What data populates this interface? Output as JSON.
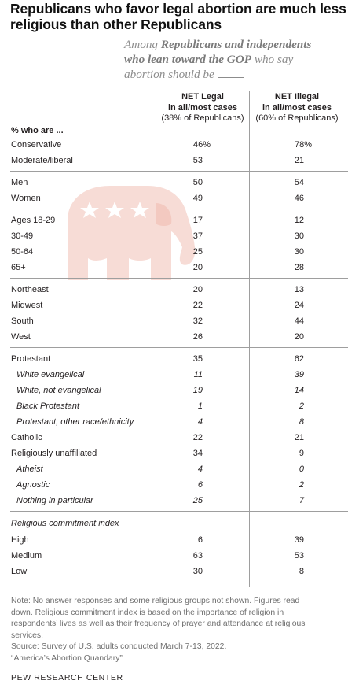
{
  "title_line1": "Republicans who favor legal abortion are much less",
  "title_line2": "religious than other Republicans",
  "subtitle": {
    "part1": "Among ",
    "bold1": "Republicans and independents",
    "bold2": "who lean toward the GOP",
    "part2": " who say",
    "part3": "abortion should be "
  },
  "columns": [
    {
      "line1": "NET Legal",
      "line2": "in all/most cases",
      "line3": "(38% of Republicans)"
    },
    {
      "line1": "NET Illegal",
      "line2": "in all/most cases",
      "line3": "(60% of Republicans)"
    }
  ],
  "chart_data": {
    "type": "table",
    "unit_header": "% who are ...",
    "groups": [
      {
        "heading": "",
        "rows": [
          {
            "label": "Conservative",
            "legal": "46%",
            "illegal": "78%",
            "italic": false
          },
          {
            "label": "Moderate/liberal",
            "legal": "53",
            "illegal": "21",
            "italic": false
          }
        ]
      },
      {
        "heading": "",
        "rows": [
          {
            "label": "Men",
            "legal": "50",
            "illegal": "54",
            "italic": false
          },
          {
            "label": "Women",
            "legal": "49",
            "illegal": "46",
            "italic": false
          }
        ]
      },
      {
        "heading": "",
        "rows": [
          {
            "label": "Ages 18-29",
            "legal": "17",
            "illegal": "12",
            "italic": false
          },
          {
            "label": "30-49",
            "legal": "37",
            "illegal": "30",
            "italic": false
          },
          {
            "label": "50-64",
            "legal": "25",
            "illegal": "30",
            "italic": false
          },
          {
            "label": "65+",
            "legal": "20",
            "illegal": "28",
            "italic": false
          }
        ]
      },
      {
        "heading": "",
        "rows": [
          {
            "label": "Northeast",
            "legal": "20",
            "illegal": "13",
            "italic": false
          },
          {
            "label": "Midwest",
            "legal": "22",
            "illegal": "24",
            "italic": false
          },
          {
            "label": "South",
            "legal": "32",
            "illegal": "44",
            "italic": false
          },
          {
            "label": "West",
            "legal": "26",
            "illegal": "20",
            "italic": false
          }
        ]
      },
      {
        "heading": "",
        "rows": [
          {
            "label": "Protestant",
            "legal": "35",
            "illegal": "62",
            "italic": false
          },
          {
            "label": "White evangelical",
            "legal": "11",
            "illegal": "39",
            "italic": true
          },
          {
            "label": "White, not evangelical",
            "legal": "19",
            "illegal": "14",
            "italic": true
          },
          {
            "label": "Black Protestant",
            "legal": "1",
            "illegal": "2",
            "italic": true
          },
          {
            "label": "Protestant, other race/ethnicity",
            "legal": "4",
            "illegal": "8",
            "italic": true
          },
          {
            "label": "Catholic",
            "legal": "22",
            "illegal": "21",
            "italic": false
          },
          {
            "label": "Religiously unaffiliated",
            "legal": "34",
            "illegal": "9",
            "italic": false
          },
          {
            "label": "Atheist",
            "legal": "4",
            "illegal": "0",
            "italic": true
          },
          {
            "label": "Agnostic",
            "legal": "6",
            "illegal": "2",
            "italic": true
          },
          {
            "label": "Nothing in particular",
            "legal": "25",
            "illegal": "7",
            "italic": true
          }
        ]
      },
      {
        "heading": "Religious commitment index",
        "rows": [
          {
            "label": "High",
            "legal": "6",
            "illegal": "39",
            "italic": false
          },
          {
            "label": "Medium",
            "legal": "63",
            "illegal": "53",
            "italic": false
          },
          {
            "label": "Low",
            "legal": "30",
            "illegal": "8",
            "italic": false
          }
        ]
      }
    ]
  },
  "notes": [
    "Note: No answer responses and some religious groups not shown. Figures read",
    "down. Religious commitment index is based on the importance of religion in",
    "respondents’ lives as well as their frequency of prayer and attendance at religious",
    "services.",
    "Source: Survey of U.S. adults conducted March 7-13, 2022.",
    "“America’s Abortion Quandary”"
  ],
  "brand": "PEW RESEARCH CENTER",
  "colors": {
    "elephant": "#f7dcd6",
    "stars": "#ffffff",
    "rule": "#9e9e9e",
    "note": "#6e6e6e"
  }
}
